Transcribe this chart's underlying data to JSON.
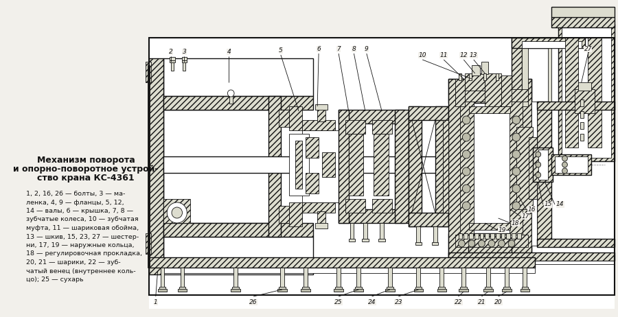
{
  "bg_color": "#f2f0eb",
  "text_color": "#1a1a1a",
  "main_title_line1": "Механизм поворота",
  "main_title_line2": "и опорно-поворотное устрой-",
  "main_title_line3": "ство крана КС-4361",
  "caption_lines": [
    "1, 2, 16, 26 — болты, 3 — ма-",
    "ленка, 4, 9 — фланцы, 5, 12,",
    "14 — валы, 6 — крышка, 7, 8 —",
    "зубчатые колеса, 10 — зубчатая",
    "муфта, 11 — шариковая обойма,",
    "13 — шкив, 15, 23, 27 — шестер-",
    "ни, 17, 19 — наружные кольца,",
    "18 — регулировочная прокладка,",
    "20, 21 — шарики, 22 — зуб-",
    "чатый венец (внутреннее коль-",
    "цо); 25 — сухарь"
  ],
  "hatch_color": "#333333",
  "line_color": "#111111",
  "fill_light": "#e8e8e0",
  "fill_white": "#ffffff",
  "fill_dark": "#aaaaaa"
}
